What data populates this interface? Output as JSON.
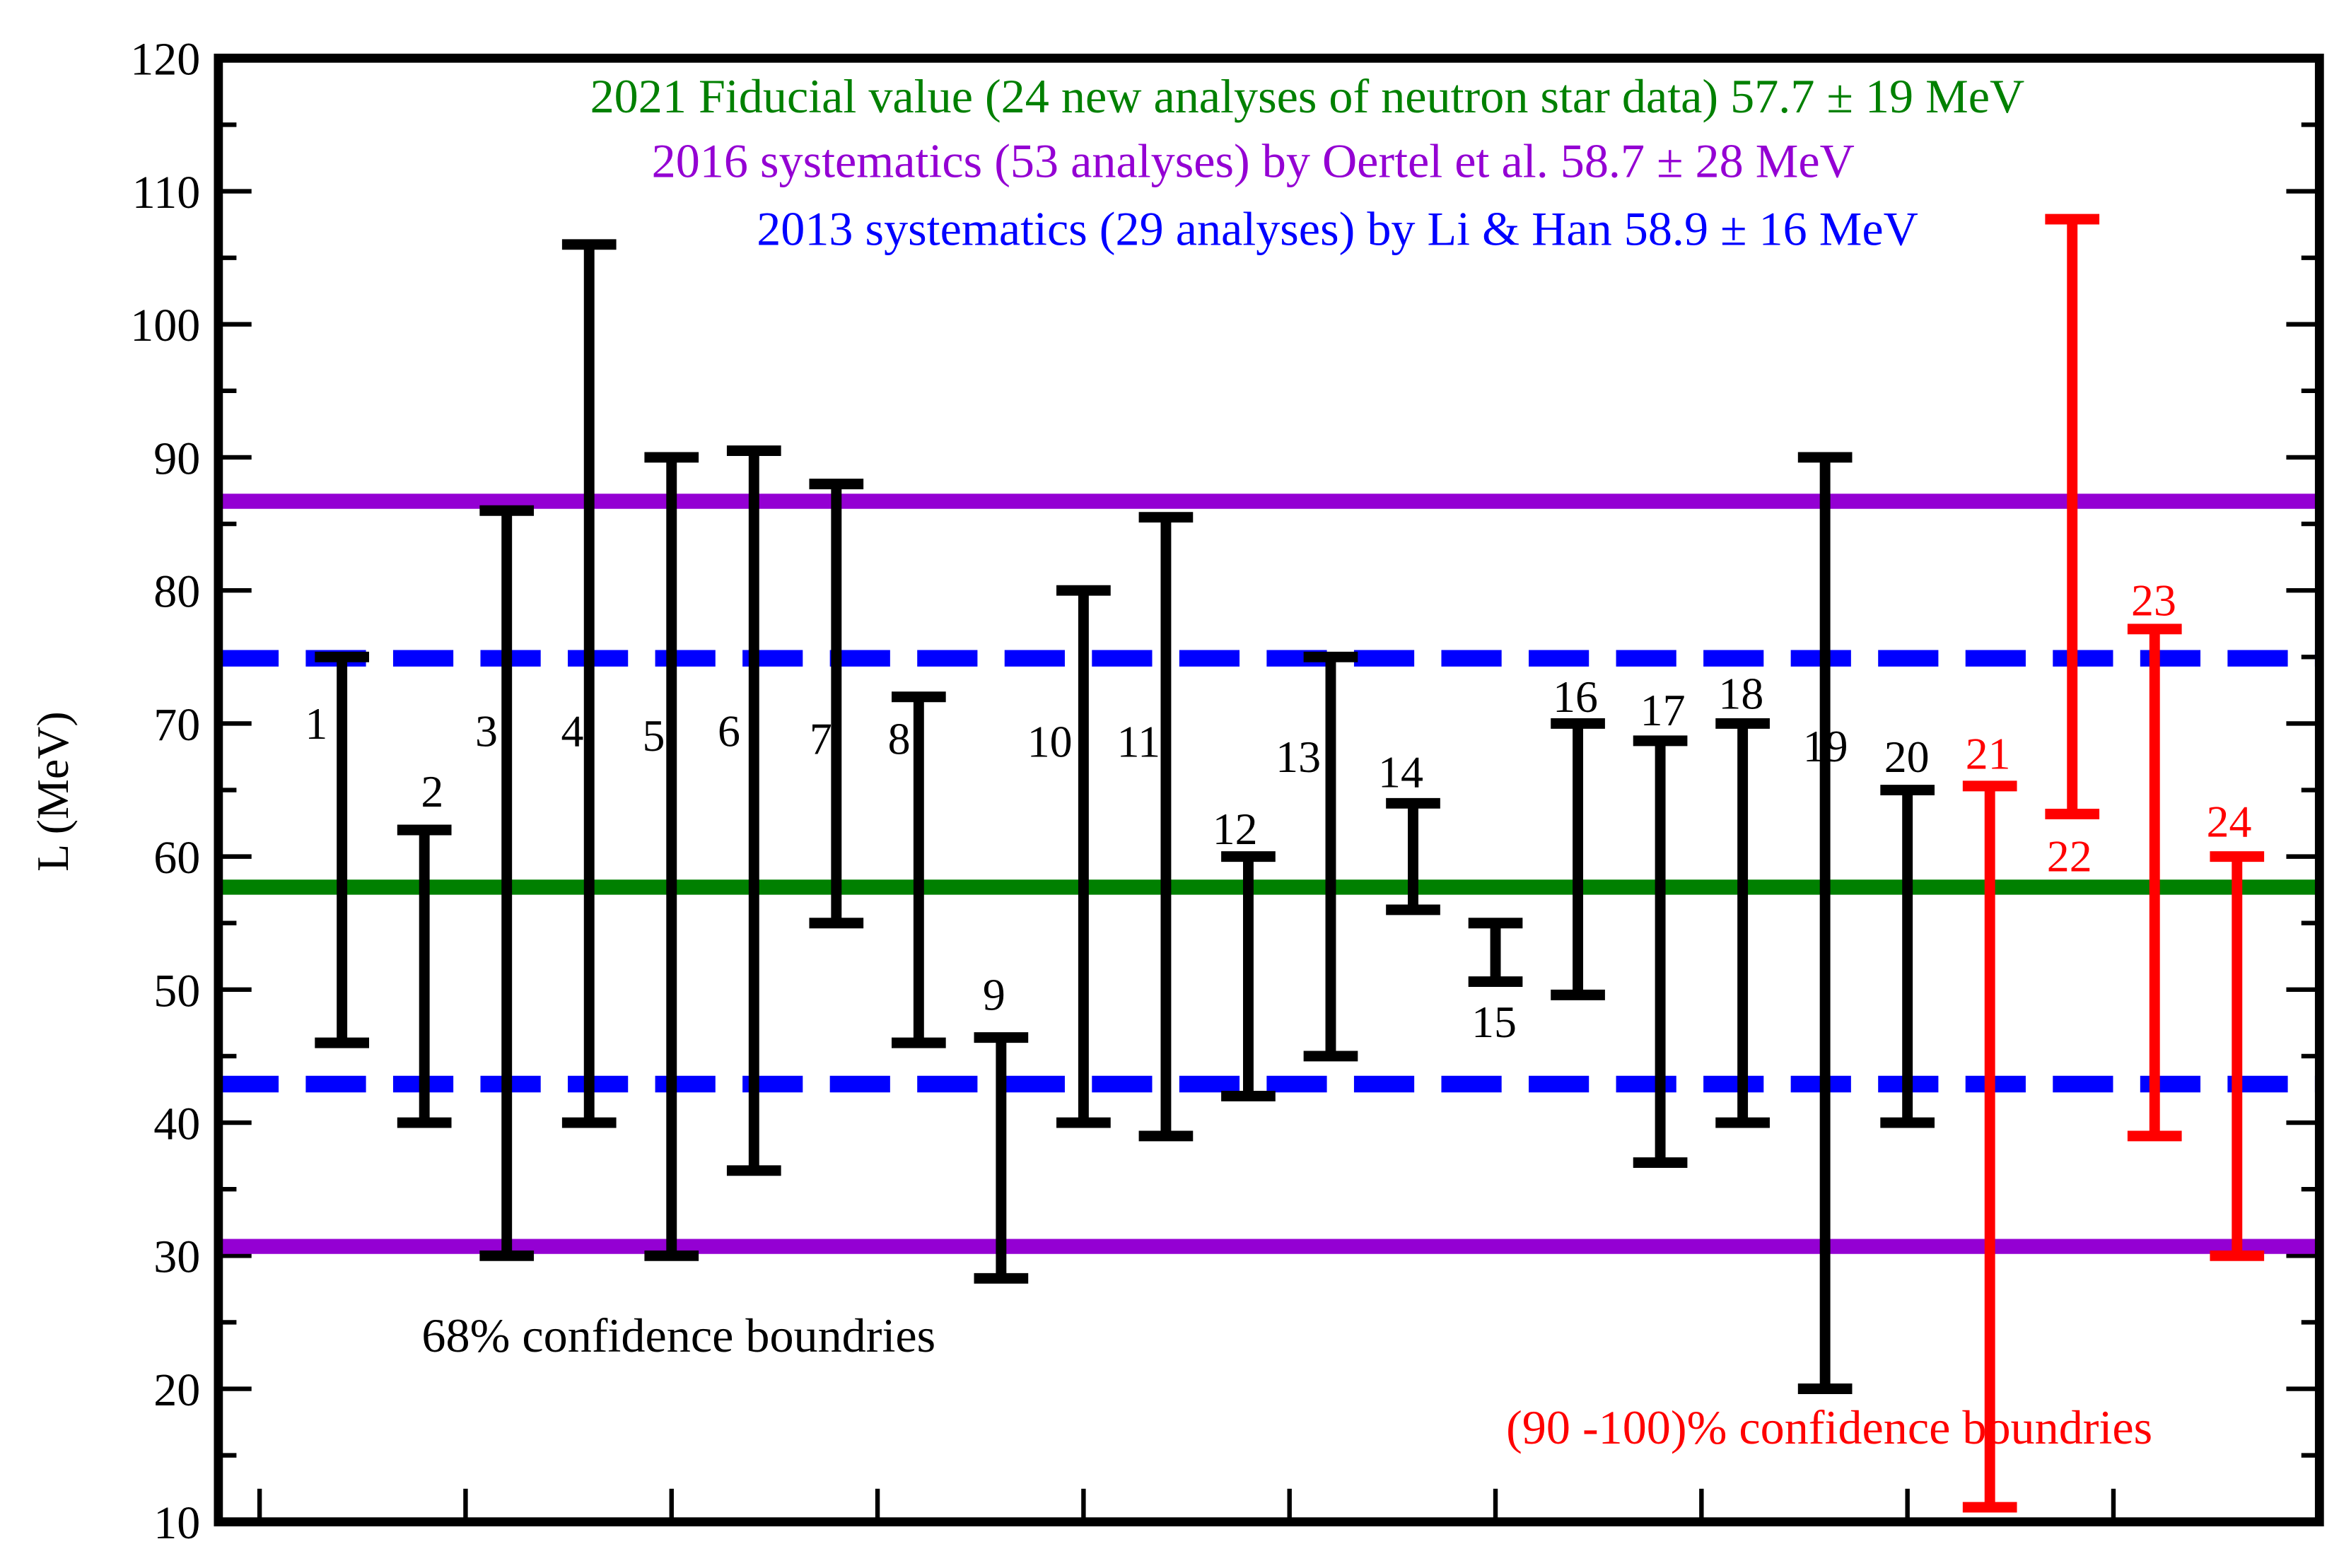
{
  "chart_data": {
    "type": "errorbar",
    "ylabel": "L (MeV)",
    "ylim": [
      10,
      120
    ],
    "yticks": [
      10,
      20,
      30,
      40,
      50,
      60,
      70,
      80,
      90,
      100,
      110,
      120
    ],
    "yminorticks": [
      15,
      25,
      35,
      45,
      55,
      65,
      75,
      85,
      95,
      105,
      115
    ],
    "xlim": [
      -0.5,
      25
    ],
    "xticks": [
      0,
      2.5,
      5,
      7.5,
      10,
      12.5,
      15,
      17.5,
      20,
      22.5
    ],
    "reference_lines": [
      {
        "name": "2021 Fiducial value (24 new analyses of neutron star data) 57.7 ± 19 MeV",
        "color": "#008000",
        "values": [
          57.7
        ],
        "dashed": false
      },
      {
        "name": "2016 systematics (53 analyses) by Oertel et al. 58.7 ± 28 MeV",
        "color": "#9400d3",
        "values": [
          86.7,
          30.7
        ],
        "dashed": false
      },
      {
        "name": "2013 systematics (29 analyses) by Li & Han 58.9 ± 16 MeV",
        "color": "#0000ff",
        "values": [
          74.9,
          42.9
        ],
        "dashed": true
      }
    ],
    "series": [
      {
        "name": "68% confidence boundries",
        "color": "#000000",
        "x": [
          1,
          2,
          3,
          4,
          5,
          6,
          7,
          8,
          9,
          10,
          11,
          12,
          13,
          14,
          15,
          16,
          17,
          18,
          19,
          20
        ],
        "labels": [
          "1",
          "2",
          "3",
          "4",
          "5",
          "6",
          "7",
          "8",
          "9",
          "10",
          "11",
          "12",
          "13",
          "14",
          "15",
          "16",
          "17",
          "18",
          "19",
          "20"
        ],
        "low": [
          46,
          40,
          30,
          40,
          30,
          36.4,
          55,
          46,
          28.3,
          40,
          39,
          42,
          45,
          56,
          50.6,
          49.6,
          37,
          40,
          20,
          40
        ],
        "high": [
          75,
          62,
          86,
          106,
          90,
          90.5,
          88,
          72,
          46.4,
          80,
          85.5,
          60,
          75,
          64,
          55,
          70,
          68.7,
          70,
          90,
          65
        ]
      },
      {
        "name": "(90 -100)% confidence boundries",
        "color": "#ff0000",
        "x": [
          21,
          22,
          23,
          24
        ],
        "labels": [
          "21",
          "22",
          "23",
          "24"
        ],
        "low": [
          11.1,
          63.2,
          39,
          30
        ],
        "high": [
          65.3,
          107.9,
          77.1,
          60
        ]
      }
    ]
  }
}
